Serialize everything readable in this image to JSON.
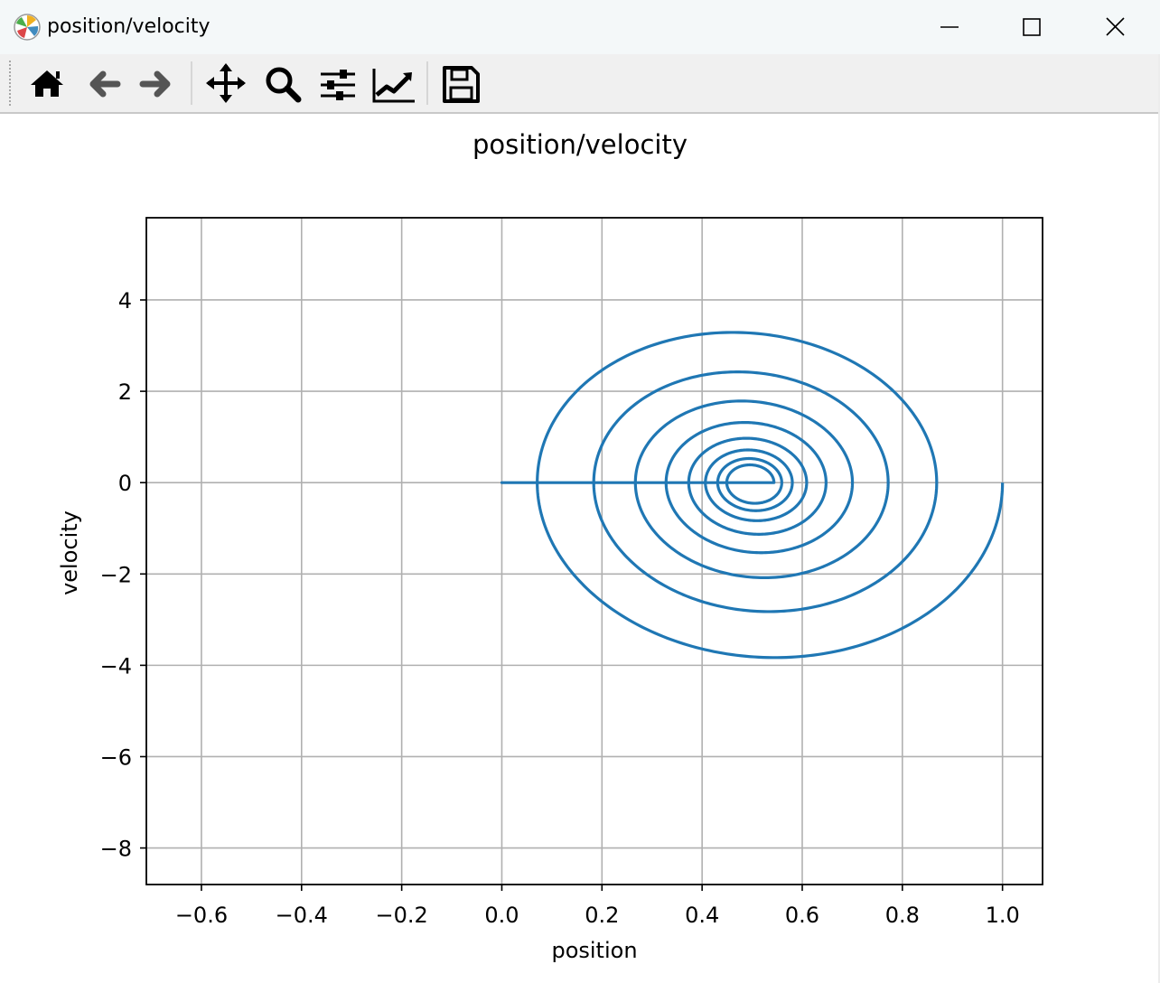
{
  "window": {
    "title": "position/velocity",
    "controls": [
      "minimize",
      "maximize",
      "close"
    ]
  },
  "toolbar": {
    "items": [
      {
        "icon": "home-icon",
        "action": "home"
      },
      {
        "icon": "arrow-left-icon",
        "action": "back"
      },
      {
        "icon": "arrow-right-icon",
        "action": "forward"
      },
      {
        "icon": "move-icon",
        "action": "pan"
      },
      {
        "icon": "magnifier-icon",
        "action": "zoom"
      },
      {
        "icon": "sliders-icon",
        "action": "configure subplots"
      },
      {
        "icon": "line-chart-icon",
        "action": "edit axis"
      },
      {
        "icon": "floppy-disk-icon",
        "action": "save"
      }
    ]
  },
  "colors": {
    "line": "#1f77b4",
    "grid": "#b0b0b0",
    "titlebar": "#f4f8f9",
    "toolbar": "#f0f0f0"
  },
  "chart_data": {
    "type": "line",
    "title": "position/velocity",
    "xlabel": "position",
    "ylabel": "velocity",
    "xlim": [
      -0.71,
      1.08
    ],
    "ylim": [
      -8.8,
      5.8
    ],
    "xticks": [
      -0.6,
      -0.4,
      -0.2,
      0.0,
      0.2,
      0.4,
      0.6,
      0.8,
      1.0
    ],
    "xtick_labels": [
      "−0.6",
      "−0.4",
      "−0.2",
      "0.0",
      "0.2",
      "0.4",
      "0.6",
      "0.8",
      "1.0"
    ],
    "yticks": [
      -8,
      -6,
      -4,
      -2,
      0,
      2,
      4
    ],
    "ytick_labels": [
      "−8",
      "−6",
      "−4",
      "−2",
      "0",
      "2",
      "4"
    ],
    "grid": true,
    "series": [
      {
        "color": "#1f77b4",
        "segments": [
          {
            "x0": 1.0,
            "center": 0.5,
            "turns": 8,
            "decay": 0.4
          },
          {
            "x0": 0.0,
            "center": 0.0,
            "turns": 2,
            "decay": 0.4
          },
          {
            "x0": 0.5,
            "center": 0.5,
            "turns": 4,
            "decay": 0.4
          },
          {
            "x0": 0.0,
            "center": 0.0,
            "turns": 6,
            "decay": 0.4
          }
        ],
        "omega": 8.25
      }
    ]
  }
}
